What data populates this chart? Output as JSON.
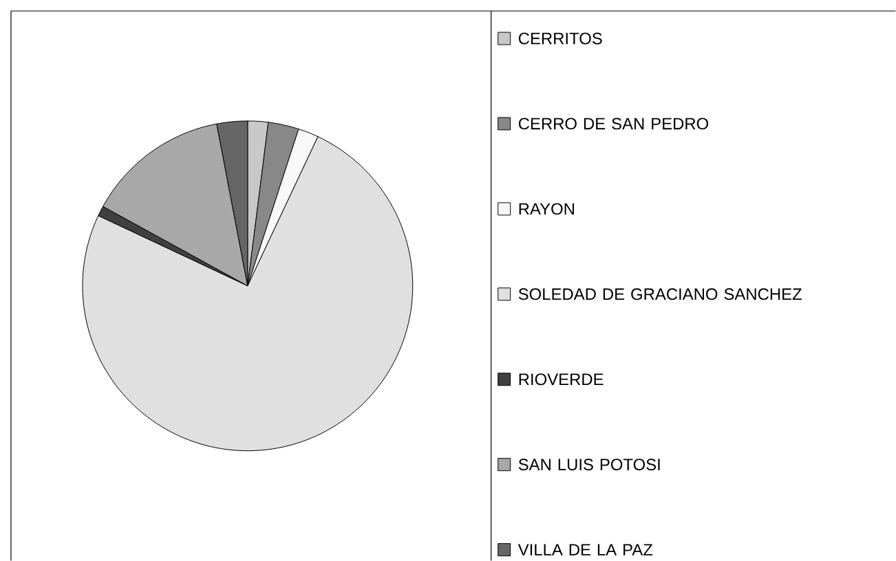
{
  "chart_data": {
    "type": "pie",
    "categories": [
      "CERRITOS",
      "CERRO DE SAN PEDRO",
      "RAYON",
      "SOLEDAD DE GRACIANO SANCHEZ",
      "RIOVERDE",
      "SAN LUIS POTOSI",
      "VILLA DE LA PAZ"
    ],
    "values": [
      2,
      3,
      2,
      75,
      1,
      14,
      3
    ],
    "colors": [
      "#c8c8c8",
      "#888888",
      "#f8f8f8",
      "#e0e0e0",
      "#404040",
      "#a8a8a8",
      "#666666"
    ],
    "legend": "right"
  }
}
